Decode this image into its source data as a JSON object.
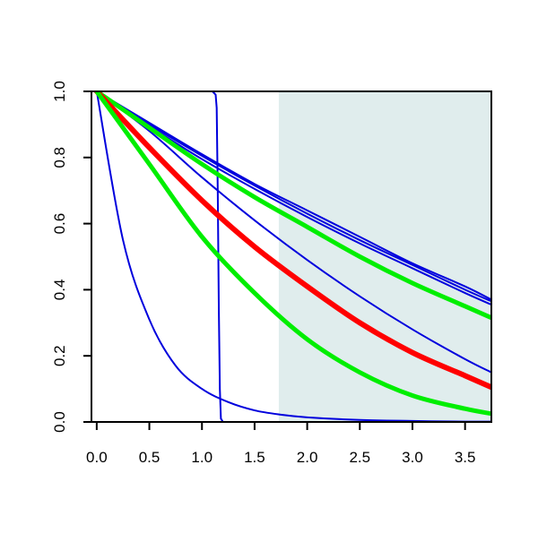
{
  "chart_data": {
    "type": "line",
    "title": "",
    "xlabel": "",
    "ylabel": "",
    "xlim": [
      -0.05,
      3.75
    ],
    "ylim": [
      0.0,
      1.0
    ],
    "x_ticks": [
      0.0,
      0.5,
      1.0,
      1.5,
      2.0,
      2.5,
      3.0,
      3.5
    ],
    "x_tick_labels": [
      "0.0",
      "0.5",
      "1.0",
      "1.5",
      "2.0",
      "2.5",
      "3.0",
      "3.5"
    ],
    "y_ticks": [
      0.0,
      0.2,
      0.4,
      0.6,
      0.8,
      1.0
    ],
    "y_tick_labels": [
      "0.0",
      "0.2",
      "0.4",
      "0.6",
      "0.8",
      "1.0"
    ],
    "grid": false,
    "legend": "none",
    "shaded_region": {
      "x_from": 1.73,
      "x_to": 3.75,
      "color": "#e0eded"
    },
    "series": [
      {
        "color": "#0000dd",
        "width": 2,
        "x": [
          0,
          0.25,
          0.5,
          0.75,
          1.0,
          1.25,
          1.5,
          1.75,
          2.0,
          2.5,
          3.0,
          3.5,
          3.75
        ],
        "y": [
          1.0,
          0.55,
          0.31,
          0.17,
          0.1,
          0.06,
          0.035,
          0.022,
          0.014,
          0.006,
          0.003,
          0.001,
          0.001
        ]
      },
      {
        "color": "#0000dd",
        "width": 2,
        "x": [
          0,
          1.0,
          1.1,
          1.13,
          1.14,
          1.15,
          1.16,
          1.17,
          1.18,
          1.2,
          1.5,
          3.75
        ],
        "y": [
          1.0,
          1.0,
          1.0,
          0.99,
          0.95,
          0.7,
          0.35,
          0.1,
          0.01,
          0.0,
          0.0,
          0.0
        ]
      },
      {
        "color": "#0000dd",
        "width": 2,
        "x": [
          0,
          0.5,
          1.0,
          1.5,
          2.0,
          2.5,
          3.0,
          3.5,
          3.75
        ],
        "y": [
          1.0,
          0.88,
          0.74,
          0.61,
          0.49,
          0.38,
          0.28,
          0.19,
          0.15
        ]
      },
      {
        "color": "#0000dd",
        "width": 2,
        "x": [
          0,
          0.5,
          1.0,
          1.5,
          2.0,
          2.5,
          3.0,
          3.5,
          3.75
        ],
        "y": [
          1.0,
          0.905,
          0.81,
          0.72,
          0.64,
          0.56,
          0.48,
          0.41,
          0.37
        ]
      },
      {
        "color": "#0000dd",
        "width": 2,
        "x": [
          0,
          0.5,
          1.0,
          1.5,
          2.0,
          2.5,
          3.0,
          3.5,
          3.75
        ],
        "y": [
          1.0,
          0.9,
          0.805,
          0.715,
          0.63,
          0.55,
          0.475,
          0.4,
          0.365
        ]
      },
      {
        "color": "#0000dd",
        "width": 2,
        "x": [
          0,
          0.5,
          1.0,
          1.5,
          2.0,
          2.5,
          3.0,
          3.5,
          3.75
        ],
        "y": [
          1.0,
          0.895,
          0.795,
          0.705,
          0.62,
          0.54,
          0.465,
          0.39,
          0.355
        ]
      },
      {
        "color": "#00ee00",
        "width": 5,
        "x": [
          0,
          0.5,
          1.0,
          1.5,
          2.0,
          2.5,
          3.0,
          3.5,
          3.75
        ],
        "y": [
          1.0,
          0.89,
          0.78,
          0.68,
          0.59,
          0.5,
          0.42,
          0.35,
          0.315
        ]
      },
      {
        "color": "#ff0000",
        "width": 6,
        "x": [
          0,
          0.5,
          1.0,
          1.5,
          2.0,
          2.5,
          3.0,
          3.5,
          3.75
        ],
        "y": [
          1.0,
          0.83,
          0.67,
          0.53,
          0.41,
          0.3,
          0.21,
          0.14,
          0.105
        ]
      },
      {
        "color": "#00ee00",
        "width": 5,
        "x": [
          0,
          0.5,
          1.0,
          1.5,
          2.0,
          2.5,
          3.0,
          3.5,
          3.75
        ],
        "y": [
          1.0,
          0.78,
          0.56,
          0.39,
          0.25,
          0.15,
          0.08,
          0.04,
          0.025
        ]
      }
    ]
  }
}
